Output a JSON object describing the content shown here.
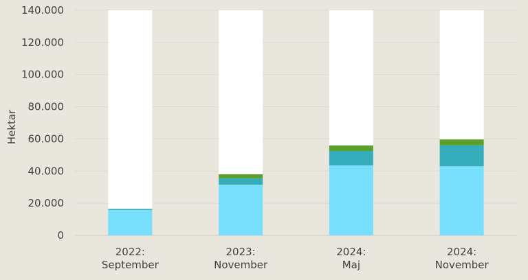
{
  "chart_data": {
    "type": "bar",
    "stacked": true,
    "categories": [
      [
        "2022:",
        "September"
      ],
      [
        "2023:",
        "November"
      ],
      [
        "2024:",
        "Maj"
      ],
      [
        "2024:",
        "November"
      ]
    ],
    "ylabel": "Hektar",
    "ylim": [
      0,
      140000
    ],
    "yticks": [
      0,
      20000,
      40000,
      60000,
      80000,
      100000,
      120000,
      140000
    ],
    "ytick_labels": [
      "0",
      "20.000",
      "40.000",
      "60.000",
      "80.000",
      "100.000",
      "120.000",
      "140.000"
    ],
    "grid": true,
    "series": [
      {
        "color": "#77dffc",
        "values": [
          15800,
          31500,
          43500,
          43000
        ]
      },
      {
        "color": "#36adbb",
        "values": [
          700,
          4000,
          9000,
          13000
        ]
      },
      {
        "color": "#5aa02c",
        "values": [
          0,
          2500,
          3500,
          3700
        ]
      },
      {
        "color": "#ffffff",
        "values": [
          123500,
          102000,
          84000,
          80300
        ]
      }
    ]
  }
}
